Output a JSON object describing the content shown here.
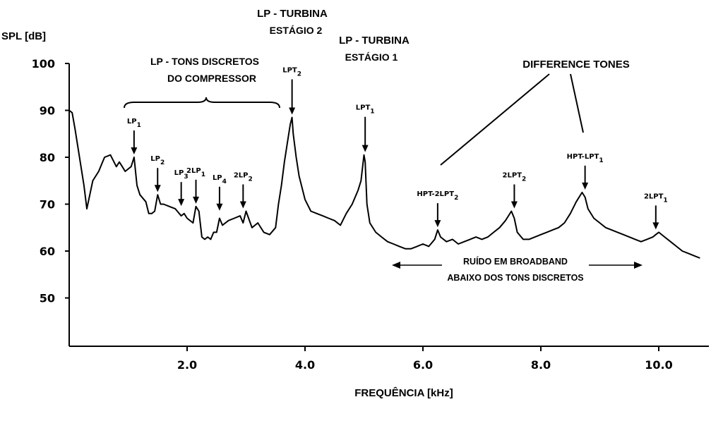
{
  "chart_data": {
    "type": "line",
    "ylabel": "SPL [dB]",
    "xlabel": "FREQUÊNCIA [kHz]",
    "xlim": [
      0,
      10.8
    ],
    "ylim": [
      40,
      100
    ],
    "xticks": [
      "2.0",
      "4.0",
      "6.0",
      "8.0",
      "10.0"
    ],
    "xtick_values": [
      2.0,
      4.0,
      6.0,
      8.0,
      10.0
    ],
    "yticks": [
      "100",
      "90",
      "80",
      "70",
      "60",
      "50"
    ],
    "ytick_values": [
      100,
      90,
      80,
      70,
      60,
      50
    ],
    "grid": false,
    "series": [
      {
        "x": [
          0.0,
          0.05,
          0.1,
          0.15,
          0.2,
          0.25,
          0.3,
          0.35,
          0.4,
          0.45,
          0.5,
          0.55,
          0.6,
          0.7,
          0.8,
          0.85,
          0.9,
          0.95,
          1.0,
          1.05,
          1.1,
          1.15,
          1.2,
          1.3,
          1.35,
          1.4,
          1.45,
          1.5,
          1.55,
          1.6,
          1.7,
          1.8,
          1.9,
          1.95,
          2.0,
          2.1,
          2.15,
          2.2,
          2.25,
          2.3,
          2.35,
          2.4,
          2.45,
          2.5,
          2.55,
          2.6,
          2.7,
          2.8,
          2.9,
          2.95,
          3.0,
          3.1,
          3.2,
          3.3,
          3.4,
          3.5,
          3.55,
          3.6,
          3.65,
          3.7,
          3.75,
          3.78,
          3.8,
          3.85,
          3.9,
          4.0,
          4.1,
          4.2,
          4.3,
          4.4,
          4.5,
          4.6,
          4.7,
          4.8,
          4.9,
          4.95,
          5.0,
          5.02,
          5.05,
          5.1,
          5.2,
          5.3,
          5.4,
          5.5,
          5.6,
          5.7,
          5.8,
          5.9,
          6.0,
          6.1,
          6.2,
          6.25,
          6.3,
          6.4,
          6.5,
          6.6,
          6.7,
          6.8,
          6.9,
          7.0,
          7.1,
          7.2,
          7.3,
          7.4,
          7.5,
          7.55,
          7.6,
          7.7,
          7.8,
          7.9,
          8.0,
          8.1,
          8.2,
          8.3,
          8.4,
          8.5,
          8.6,
          8.7,
          8.75,
          8.8,
          8.9,
          9.0,
          9.1,
          9.2,
          9.3,
          9.4,
          9.5,
          9.6,
          9.7,
          9.8,
          9.9,
          9.95,
          10.0,
          10.1,
          10.2,
          10.3,
          10.4,
          10.5,
          10.6,
          10.7
        ],
        "y": [
          90,
          89.5,
          86,
          82,
          78,
          74,
          69,
          72,
          75,
          76,
          77,
          78.5,
          80,
          80.5,
          78,
          79,
          78,
          77,
          77.5,
          78,
          80,
          74,
          72,
          70.5,
          68,
          68,
          68.5,
          72,
          70,
          70,
          69.5,
          69,
          67.5,
          68,
          67,
          66,
          69.5,
          68.5,
          63,
          62.5,
          63,
          62.5,
          64,
          64,
          67,
          65.5,
          66.5,
          67,
          67.5,
          66,
          68.5,
          65,
          66,
          64,
          63.5,
          65,
          70,
          74,
          79,
          83,
          87,
          88.5,
          85,
          80,
          76,
          71,
          68.5,
          68,
          67.5,
          67,
          66.5,
          65.5,
          68,
          70,
          73,
          75,
          80.5,
          79,
          70,
          66,
          64,
          63,
          62,
          61.5,
          61,
          60.5,
          60.5,
          61,
          61.5,
          61,
          62.5,
          64.5,
          63,
          62,
          62.5,
          61.5,
          62,
          62.5,
          63,
          62.5,
          63,
          64,
          65,
          66.5,
          68.5,
          67,
          64,
          62.5,
          62.5,
          63,
          63.5,
          64,
          64.5,
          65,
          66,
          68,
          70.5,
          72.5,
          71.5,
          69,
          67,
          66,
          65,
          64.5,
          64,
          63.5,
          63,
          62.5,
          62,
          62.5,
          63,
          63.5,
          64,
          63,
          62,
          61,
          60,
          59.5,
          59,
          58.5
        ]
      }
    ],
    "annotations": [
      {
        "text": "LP - TURBINA",
        "line2": "ESTÁGIO 2"
      },
      {
        "text": "LP - TURBINA",
        "line2": "ESTÁGIO 1"
      },
      {
        "text": "LP - TONS DISCRETOS",
        "line2": "DO COMPRESSOR"
      },
      {
        "text": "DIFFERENCE TONES"
      },
      {
        "text": "RUÍDO EM BROADBAND",
        "line2": "ABAIXO DOS TONS DISCRETOS"
      }
    ],
    "peak_labels": [
      {
        "base": "LP",
        "sub": "1",
        "x": 1.1,
        "y": 80
      },
      {
        "base": "LP",
        "sub": "2",
        "x": 1.5,
        "y": 72
      },
      {
        "base": "LP",
        "sub": "3",
        "x": 1.9,
        "y": 69
      },
      {
        "base": "2LP",
        "sub": "1",
        "x": 2.15,
        "y": 69.5
      },
      {
        "base": "LP",
        "sub": "4",
        "x": 2.55,
        "y": 68
      },
      {
        "base": "2LP",
        "sub": "2",
        "x": 2.95,
        "y": 68.5
      },
      {
        "base": "LPT",
        "sub": "2",
        "x": 3.78,
        "y": 88.5
      },
      {
        "base": "LPT",
        "sub": "1",
        "x": 5.02,
        "y": 80.5
      },
      {
        "base": "HPT-2LPT",
        "sub": "2",
        "x": 6.25,
        "y": 64.5
      },
      {
        "base": "2LPT",
        "sub": "2",
        "x": 7.55,
        "y": 68.5
      },
      {
        "base": "HPT-LPT",
        "sub": "1",
        "x": 8.75,
        "y": 72.5
      },
      {
        "base": "2LPT",
        "sub": "1",
        "x": 9.95,
        "y": 64
      }
    ]
  }
}
